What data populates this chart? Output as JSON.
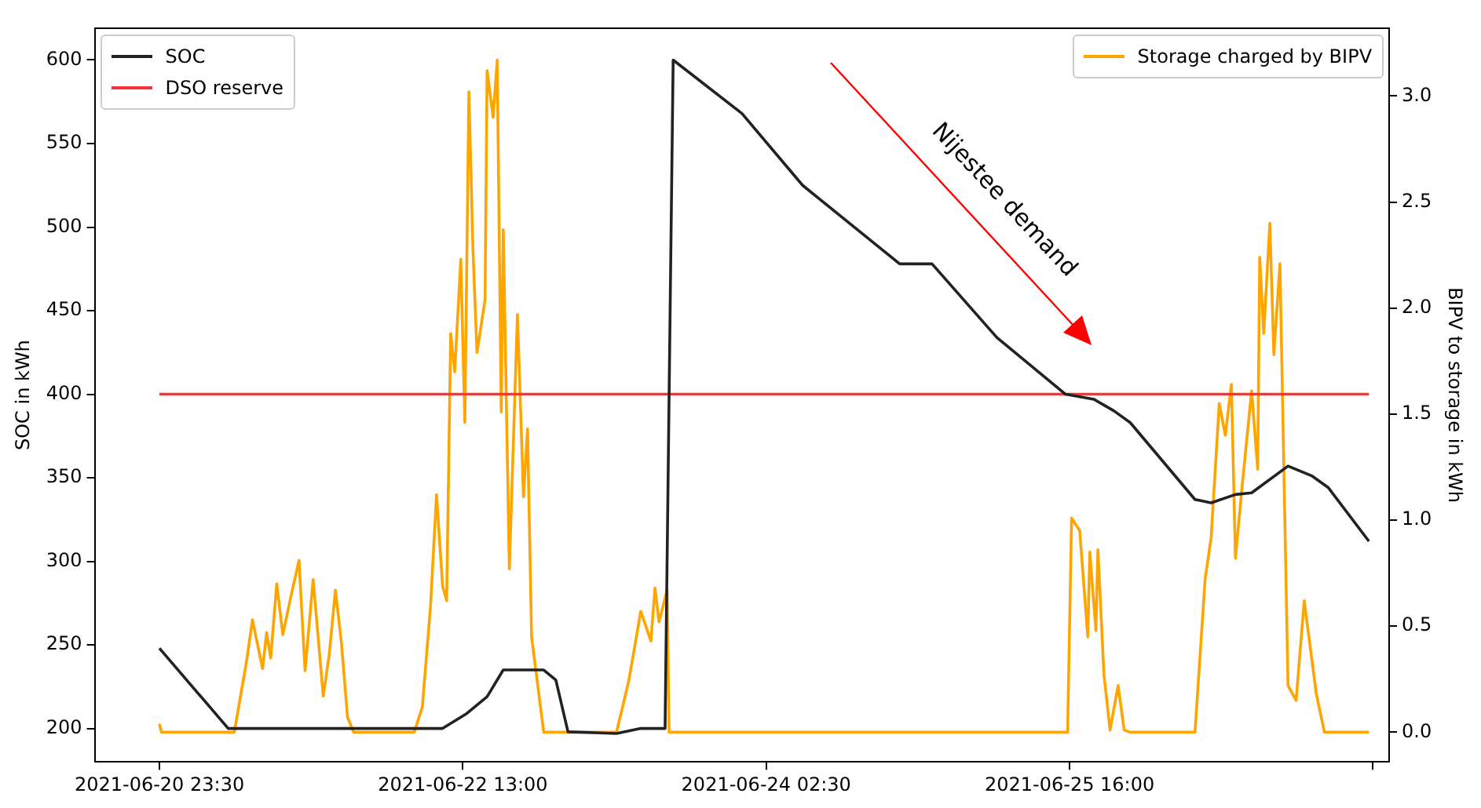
{
  "chart_data": {
    "type": "line",
    "xlim": [
      "2021-06-20T15:30",
      "2021-06-27T07:30"
    ],
    "xticks": [
      {
        "value": "2021-06-20T23:30",
        "label": "2021-06-20 23:30"
      },
      {
        "value": "2021-06-22T13:00",
        "label": "2021-06-22 13:00"
      },
      {
        "value": "2021-06-24T02:30",
        "label": "2021-06-24 02:30"
      },
      {
        "value": "2021-06-25T16:00",
        "label": "2021-06-25 16:00"
      },
      {
        "value": "2021-06-27T05:30",
        "label": null
      }
    ],
    "ylabel": "SOC in kWh",
    "y2label": "BIPV to storage in kWh",
    "ylim": [
      180,
      619
    ],
    "yticks": [
      200,
      250,
      300,
      350,
      400,
      450,
      500,
      550,
      600
    ],
    "y2lim": [
      -0.14,
      3.32
    ],
    "y2ticks": [
      {
        "value": 0,
        "label": "0.0"
      },
      {
        "value": 0.5,
        "label": "0.5"
      },
      {
        "value": 1,
        "label": "1.0"
      },
      {
        "value": 1.5,
        "label": "1.5"
      },
      {
        "value": 2,
        "label": "2.0"
      },
      {
        "value": 2.5,
        "label": "2.5"
      },
      {
        "value": 3,
        "label": "3.0"
      }
    ],
    "legend": "top left",
    "grid": false,
    "marker": "none",
    "line_style": "solid",
    "annotations": [
      "Nijestee demand"
    ],
    "series": [
      {
        "name": "SOC",
        "color": "#222222",
        "x": [
          "2021-06-20T23:30",
          "2021-06-21T08:00",
          "2021-06-22T10:30",
          "2021-06-22T13:30",
          "2021-06-22T16:00",
          "2021-06-22T18:00",
          "2021-06-22T23:00",
          "2021-06-23T00:30",
          "2021-06-23T02:00",
          "2021-06-23T08:00",
          "2021-06-23T11:00",
          "2021-06-23T14:00",
          "2021-06-23T15:00",
          "2021-06-23T23:30",
          "2021-06-24T07:00",
          "2021-06-24T19:00",
          "2021-06-24T23:00",
          "2021-06-25T07:00",
          "2021-06-25T15:30",
          "2021-06-25T19:00",
          "2021-06-25T21:30",
          "2021-06-25T23:30",
          "2021-06-26T07:30",
          "2021-06-26T09:30",
          "2021-06-26T12:30",
          "2021-06-26T14:30",
          "2021-06-26T19:00",
          "2021-06-26T22:00",
          "2021-06-27T00:00",
          "2021-06-27T05:00"
        ],
        "values": [
          248,
          200,
          200,
          209,
          219,
          235,
          235,
          229,
          198,
          197,
          200,
          200,
          600,
          568,
          525,
          478,
          478,
          434,
          400,
          397,
          390,
          383,
          337,
          335,
          340,
          341,
          357,
          351,
          344,
          312
        ]
      },
      {
        "name": "DSO reserve",
        "color": "#ff3333",
        "x": [
          "2021-06-20T23:30",
          "2021-06-27T05:00"
        ],
        "values": [
          400,
          400
        ]
      },
      {
        "name": "Storage charged by BIPV",
        "color": "#ffa500",
        "axis": "y2",
        "x": [
          "2021-06-20T23:30",
          "2021-06-20T23:45",
          "2021-06-21T08:45",
          "2021-06-21T10:15",
          "2021-06-21T11:00",
          "2021-06-21T12:15",
          "2021-06-21T12:45",
          "2021-06-21T13:15",
          "2021-06-21T14:00",
          "2021-06-21T14:45",
          "2021-06-21T15:45",
          "2021-06-21T16:45",
          "2021-06-21T17:30",
          "2021-06-21T18:30",
          "2021-06-21T19:45",
          "2021-06-21T20:30",
          "2021-06-21T21:15",
          "2021-06-21T22:00",
          "2021-06-21T22:45",
          "2021-06-21T23:30",
          "2021-06-22T07:00",
          "2021-06-22T08:00",
          "2021-06-22T09:00",
          "2021-06-22T09:45",
          "2021-06-22T10:30",
          "2021-06-22T11:00",
          "2021-06-22T11:30",
          "2021-06-22T12:00",
          "2021-06-22T12:45",
          "2021-06-22T13:15",
          "2021-06-22T13:45",
          "2021-06-22T14:15",
          "2021-06-22T14:45",
          "2021-06-22T15:45",
          "2021-06-22T16:00",
          "2021-06-22T16:45",
          "2021-06-22T17:15",
          "2021-06-22T17:45",
          "2021-06-22T18:00",
          "2021-06-22T18:45",
          "2021-06-22T19:45",
          "2021-06-22T20:30",
          "2021-06-22T21:00",
          "2021-06-22T21:30",
          "2021-06-22T23:00",
          "2021-06-23T08:00",
          "2021-06-23T09:30",
          "2021-06-23T11:00",
          "2021-06-23T12:15",
          "2021-06-23T12:45",
          "2021-06-23T13:15",
          "2021-06-23T14:15",
          "2021-06-23T14:30",
          "2021-06-25T15:45",
          "2021-06-25T16:15",
          "2021-06-25T17:15",
          "2021-06-25T18:15",
          "2021-06-25T18:30",
          "2021-06-25T19:15",
          "2021-06-25T19:30",
          "2021-06-25T20:15",
          "2021-06-25T21:00",
          "2021-06-25T22:00",
          "2021-06-25T22:45",
          "2021-06-25T23:30",
          "2021-06-26T07:30",
          "2021-06-26T08:45",
          "2021-06-26T09:30",
          "2021-06-26T10:30",
          "2021-06-26T11:15",
          "2021-06-26T12:00",
          "2021-06-26T12:30",
          "2021-06-26T13:15",
          "2021-06-26T14:30",
          "2021-06-26T15:15",
          "2021-06-26T15:30",
          "2021-06-26T16:00",
          "2021-06-26T16:45",
          "2021-06-26T17:15",
          "2021-06-26T18:00",
          "2021-06-26T19:00",
          "2021-06-26T20:00",
          "2021-06-26T21:00",
          "2021-06-26T22:30",
          "2021-06-26T23:30",
          "2021-06-27T05:00"
        ],
        "values": [
          0.04,
          0,
          0,
          0.33,
          0.53,
          0.3,
          0.47,
          0.35,
          0.7,
          0.46,
          0.64,
          0.81,
          0.29,
          0.72,
          0.17,
          0.37,
          0.67,
          0.42,
          0.07,
          0,
          0,
          0.12,
          0.59,
          1.12,
          0.69,
          0.62,
          1.88,
          1.7,
          2.23,
          1.46,
          3.02,
          2.28,
          1.79,
          2.04,
          3.12,
          2.9,
          3.17,
          1.51,
          2.37,
          0.77,
          1.97,
          1.11,
          1.43,
          0.45,
          0,
          0,
          0.24,
          0.57,
          0.43,
          0.68,
          0.52,
          0.67,
          0,
          0,
          1.01,
          0.95,
          0.45,
          0.85,
          0.48,
          0.86,
          0.27,
          0.01,
          0.22,
          0.01,
          0,
          0,
          0.72,
          0.92,
          1.55,
          1.4,
          1.64,
          0.82,
          1.13,
          1.61,
          1.24,
          2.24,
          1.88,
          2.4,
          1.78,
          2.21,
          0.22,
          0.15,
          0.62,
          0.18,
          0,
          0
        ]
      }
    ]
  }
}
